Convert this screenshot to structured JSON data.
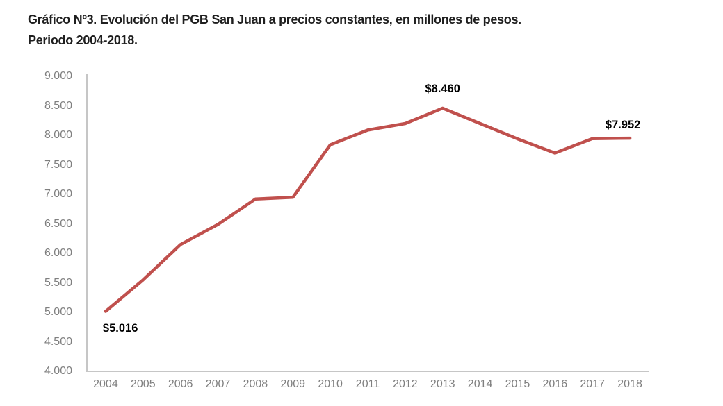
{
  "title": {
    "line1": "Gráfico Nº3. Evolución del PGB San Juan a precios constantes, en millones de pesos.",
    "line2": "Periodo 2004-2018."
  },
  "colors": {
    "line": "#C0504D",
    "axis": "#C6C6C6",
    "tick_label": "#7F7F7F",
    "title_text": "#1F1F1F",
    "data_label": "#000000"
  },
  "chart_data": {
    "type": "line",
    "title": "Gráfico Nº3. Evolución del PGB San Juan a precios constantes, en millones de pesos. Periodo 2004-2018.",
    "xlabel": "",
    "ylabel": "",
    "categories": [
      "2004",
      "2005",
      "2006",
      "2007",
      "2008",
      "2009",
      "2010",
      "2011",
      "2012",
      "2013",
      "2014",
      "2015",
      "2016",
      "2017",
      "2018"
    ],
    "values": [
      5016,
      5550,
      6150,
      6490,
      6920,
      6950,
      7840,
      8090,
      8200,
      8460,
      8200,
      7940,
      7700,
      7945,
      7952
    ],
    "ylim": [
      4000,
      9000
    ],
    "ytick_step": 500,
    "ytick_labels": [
      "9.000",
      "8.500",
      "8.000",
      "7.500",
      "7.000",
      "6.500",
      "6.000",
      "5.500",
      "5.000",
      "4.500",
      "4.000"
    ],
    "grid": false,
    "legend": "none",
    "line_color": "#C0504D",
    "point_labels": [
      {
        "category": "2004",
        "text": "$5.016",
        "position": "below-right"
      },
      {
        "category": "2013",
        "text": "$8.460",
        "position": "above"
      },
      {
        "category": "2018",
        "text": "$7.952",
        "position": "above-left"
      }
    ]
  }
}
